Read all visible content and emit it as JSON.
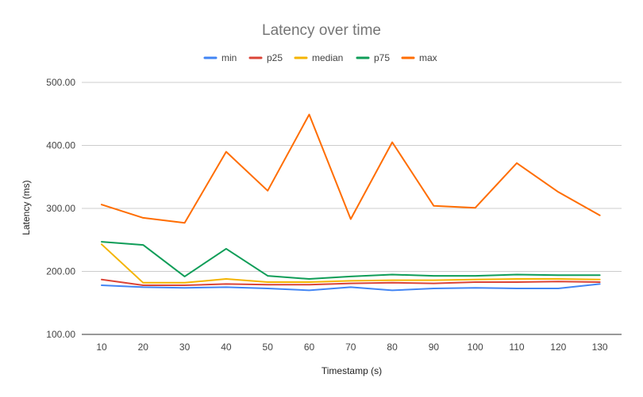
{
  "chart_data": {
    "type": "line",
    "title": "Latency over time",
    "xlabel": "Timestamp (s)",
    "ylabel": "Latency (ms)",
    "x": [
      10,
      20,
      30,
      40,
      50,
      60,
      70,
      80,
      90,
      100,
      110,
      120,
      130
    ],
    "x_tick_labels": [
      "10",
      "20",
      "30",
      "40",
      "50",
      "60",
      "70",
      "80",
      "90",
      "100",
      "110",
      "120",
      "130"
    ],
    "y_tick_labels": [
      "100.00",
      "200.00",
      "300.00",
      "400.00",
      "500.00"
    ],
    "y_ticks": [
      100,
      200,
      300,
      400,
      500
    ],
    "ylim": [
      100,
      500
    ],
    "grid": true,
    "legend_position": "top",
    "series": [
      {
        "name": "min",
        "color": "#4285f4",
        "values": [
          178,
          175,
          174,
          175,
          173,
          170,
          175,
          170,
          173,
          174,
          173,
          173,
          180
        ]
      },
      {
        "name": "p25",
        "color": "#db4437",
        "values": [
          187,
          178,
          178,
          180,
          179,
          179,
          181,
          182,
          181,
          183,
          183,
          184,
          183
        ]
      },
      {
        "name": "median",
        "color": "#f4b400",
        "values": [
          243,
          182,
          182,
          188,
          183,
          183,
          185,
          186,
          186,
          187,
          188,
          188,
          187
        ]
      },
      {
        "name": "p75",
        "color": "#0f9d58",
        "values": [
          247,
          242,
          192,
          236,
          193,
          188,
          192,
          195,
          193,
          193,
          195,
          194,
          194
        ]
      },
      {
        "name": "max",
        "color": "#ff6d01",
        "values": [
          306,
          285,
          277,
          390,
          328,
          449,
          283,
          405,
          304,
          301,
          372,
          326,
          289
        ]
      }
    ]
  }
}
